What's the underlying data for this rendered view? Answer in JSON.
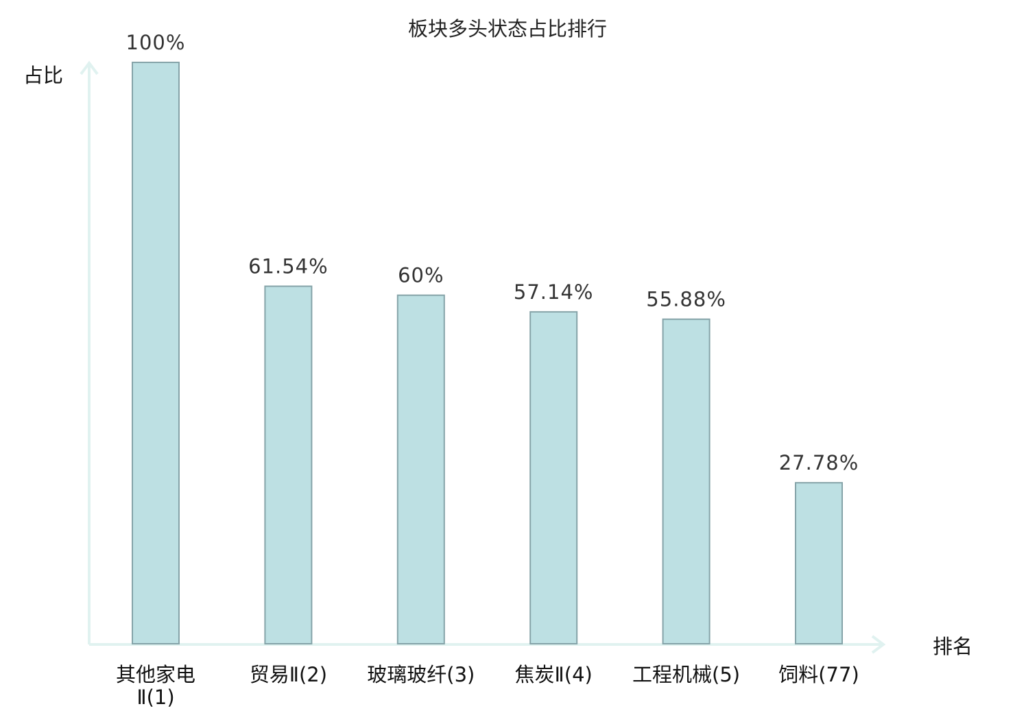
{
  "chart_data": {
    "type": "bar",
    "title": "板块多头状态占比排行",
    "ylabel": "占比",
    "xlabel": "排名",
    "ylim": [
      0,
      100
    ],
    "grid": false,
    "categories": [
      [
        "其他家电",
        "Ⅱ(1)"
      ],
      [
        "贸易Ⅱ(2)"
      ],
      [
        "玻璃玻纤(3)"
      ],
      [
        "焦炭Ⅱ(4)"
      ],
      [
        "工程机械(5)"
      ],
      [
        "饲料(77)"
      ]
    ],
    "values": [
      100,
      61.54,
      60,
      57.14,
      55.88,
      27.78
    ],
    "value_labels": [
      "100%",
      "61.54%",
      "60%",
      "57.14%",
      "55.88%",
      "27.78%"
    ],
    "highlight_index": 5,
    "colors": {
      "bar_fill": "#bde0e3",
      "bar_stroke": "#85a3a8",
      "axis": "#e0f2f0",
      "highlight_text": "#e01010",
      "text": "#111111"
    }
  }
}
